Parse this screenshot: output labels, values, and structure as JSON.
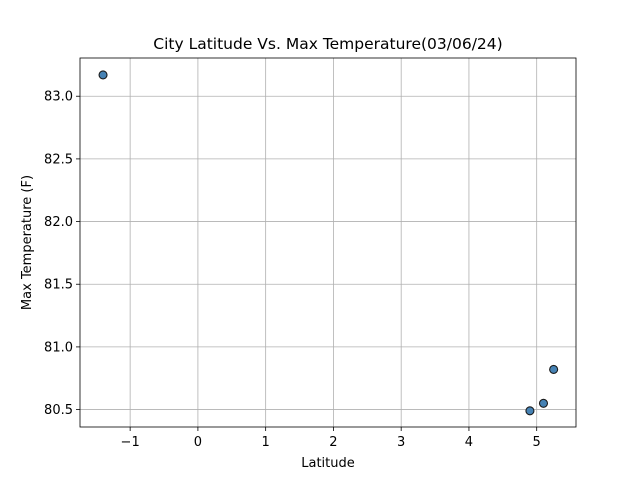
{
  "chart_data": {
    "type": "scatter",
    "title": "City Latitude Vs. Max Temperature(03/06/24)",
    "xlabel": "Latitude",
    "ylabel": "Max Temperature (F)",
    "xlim": [
      -1.74,
      5.58
    ],
    "ylim": [
      80.361,
      83.305
    ],
    "xticks": [
      -1,
      0,
      1,
      2,
      3,
      4,
      5
    ],
    "yticks": [
      80.5,
      81.0,
      81.5,
      82.0,
      82.5,
      83.0
    ],
    "xtick_labels": [
      "−1",
      "0",
      "1",
      "2",
      "3",
      "4",
      "5"
    ],
    "ytick_labels": [
      "80.5",
      "81.0",
      "81.5",
      "82.0",
      "82.5",
      "83.0"
    ],
    "grid": true,
    "marker_color": "#4682b4",
    "marker_edge_color": "#1a1a1a",
    "points": [
      {
        "x": -1.4,
        "y": 83.17
      },
      {
        "x": 4.9,
        "y": 80.49
      },
      {
        "x": 5.1,
        "y": 80.55
      },
      {
        "x": 5.25,
        "y": 80.82
      }
    ]
  }
}
